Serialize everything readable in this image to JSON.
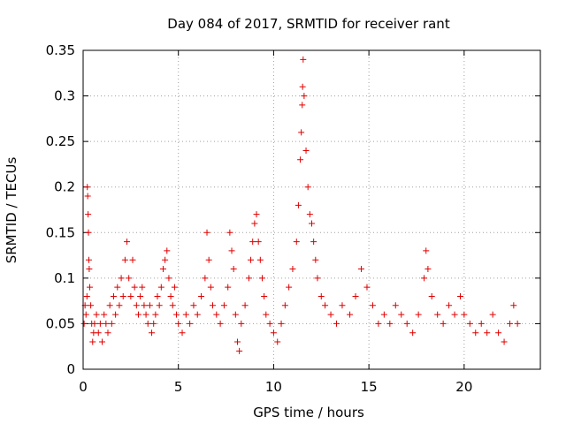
{
  "chart_data": {
    "type": "scatter",
    "title": "Day 084 of 2017, SRMTID for receiver rant",
    "xlabel": "GPS time / hours",
    "ylabel": "SRMTID / TECUs",
    "xlim": [
      0,
      24
    ],
    "ylim": [
      0,
      0.35
    ],
    "xticks": [
      0,
      5,
      10,
      15,
      20
    ],
    "yticks": [
      0,
      0.05,
      0.1,
      0.15,
      0.2,
      0.25,
      0.3,
      0.35
    ],
    "xtick_labels": [
      "0",
      "5",
      "10",
      "15",
      "20"
    ],
    "ytick_labels": [
      "0",
      "0.05",
      "0.1",
      "0.15",
      "0.2",
      "0.25",
      "0.3",
      "0.35"
    ],
    "grid": true,
    "marker": "+",
    "color": "#e00000",
    "series": [
      {
        "name": "SRMTID",
        "points": [
          [
            0.05,
            0.05
          ],
          [
            0.1,
            0.07
          ],
          [
            0.15,
            0.06
          ],
          [
            0.2,
            0.08
          ],
          [
            0.22,
            0.2
          ],
          [
            0.24,
            0.19
          ],
          [
            0.26,
            0.17
          ],
          [
            0.28,
            0.15
          ],
          [
            0.3,
            0.12
          ],
          [
            0.32,
            0.11
          ],
          [
            0.35,
            0.09
          ],
          [
            0.4,
            0.07
          ],
          [
            0.45,
            0.05
          ],
          [
            0.5,
            0.03
          ],
          [
            0.55,
            0.04
          ],
          [
            0.6,
            0.05
          ],
          [
            0.7,
            0.06
          ],
          [
            0.8,
            0.04
          ],
          [
            0.9,
            0.05
          ],
          [
            1.0,
            0.03
          ],
          [
            1.1,
            0.06
          ],
          [
            1.2,
            0.05
          ],
          [
            1.3,
            0.04
          ],
          [
            1.4,
            0.07
          ],
          [
            1.5,
            0.05
          ],
          [
            1.6,
            0.08
          ],
          [
            1.7,
            0.06
          ],
          [
            1.8,
            0.09
          ],
          [
            1.9,
            0.07
          ],
          [
            2.0,
            0.1
          ],
          [
            2.1,
            0.08
          ],
          [
            2.2,
            0.12
          ],
          [
            2.3,
            0.14
          ],
          [
            2.4,
            0.1
          ],
          [
            2.5,
            0.08
          ],
          [
            2.6,
            0.12
          ],
          [
            2.7,
            0.09
          ],
          [
            2.8,
            0.07
          ],
          [
            2.9,
            0.06
          ],
          [
            3.0,
            0.08
          ],
          [
            3.1,
            0.09
          ],
          [
            3.2,
            0.07
          ],
          [
            3.3,
            0.06
          ],
          [
            3.4,
            0.05
          ],
          [
            3.5,
            0.07
          ],
          [
            3.6,
            0.04
          ],
          [
            3.7,
            0.05
          ],
          [
            3.8,
            0.06
          ],
          [
            3.9,
            0.08
          ],
          [
            4.0,
            0.07
          ],
          [
            4.1,
            0.09
          ],
          [
            4.2,
            0.11
          ],
          [
            4.3,
            0.12
          ],
          [
            4.4,
            0.13
          ],
          [
            4.5,
            0.1
          ],
          [
            4.6,
            0.08
          ],
          [
            4.7,
            0.07
          ],
          [
            4.8,
            0.09
          ],
          [
            4.9,
            0.06
          ],
          [
            5.0,
            0.05
          ],
          [
            5.2,
            0.04
          ],
          [
            5.4,
            0.06
          ],
          [
            5.6,
            0.05
          ],
          [
            5.8,
            0.07
          ],
          [
            6.0,
            0.06
          ],
          [
            6.2,
            0.08
          ],
          [
            6.4,
            0.1
          ],
          [
            6.5,
            0.15
          ],
          [
            6.6,
            0.12
          ],
          [
            6.7,
            0.09
          ],
          [
            6.8,
            0.07
          ],
          [
            7.0,
            0.06
          ],
          [
            7.2,
            0.05
          ],
          [
            7.4,
            0.07
          ],
          [
            7.6,
            0.09
          ],
          [
            7.7,
            0.15
          ],
          [
            7.8,
            0.13
          ],
          [
            7.9,
            0.11
          ],
          [
            8.0,
            0.06
          ],
          [
            8.1,
            0.03
          ],
          [
            8.2,
            0.02
          ],
          [
            8.3,
            0.05
          ],
          [
            8.5,
            0.07
          ],
          [
            8.7,
            0.1
          ],
          [
            8.8,
            0.12
          ],
          [
            8.9,
            0.14
          ],
          [
            9.0,
            0.16
          ],
          [
            9.1,
            0.17
          ],
          [
            9.2,
            0.14
          ],
          [
            9.3,
            0.12
          ],
          [
            9.4,
            0.1
          ],
          [
            9.5,
            0.08
          ],
          [
            9.6,
            0.06
          ],
          [
            9.8,
            0.05
          ],
          [
            10.0,
            0.04
          ],
          [
            10.2,
            0.03
          ],
          [
            10.4,
            0.05
          ],
          [
            10.6,
            0.07
          ],
          [
            10.8,
            0.09
          ],
          [
            11.0,
            0.11
          ],
          [
            11.2,
            0.14
          ],
          [
            11.3,
            0.18
          ],
          [
            11.4,
            0.23
          ],
          [
            11.45,
            0.26
          ],
          [
            11.5,
            0.29
          ],
          [
            11.52,
            0.31
          ],
          [
            11.55,
            0.34
          ],
          [
            11.6,
            0.3
          ],
          [
            11.7,
            0.24
          ],
          [
            11.8,
            0.2
          ],
          [
            11.9,
            0.17
          ],
          [
            12.0,
            0.16
          ],
          [
            12.1,
            0.14
          ],
          [
            12.2,
            0.12
          ],
          [
            12.3,
            0.1
          ],
          [
            12.5,
            0.08
          ],
          [
            12.7,
            0.07
          ],
          [
            13.0,
            0.06
          ],
          [
            13.3,
            0.05
          ],
          [
            13.6,
            0.07
          ],
          [
            14.0,
            0.06
          ],
          [
            14.3,
            0.08
          ],
          [
            14.6,
            0.11
          ],
          [
            14.9,
            0.09
          ],
          [
            15.2,
            0.07
          ],
          [
            15.5,
            0.05
          ],
          [
            15.8,
            0.06
          ],
          [
            16.1,
            0.05
          ],
          [
            16.4,
            0.07
          ],
          [
            16.7,
            0.06
          ],
          [
            17.0,
            0.05
          ],
          [
            17.3,
            0.04
          ],
          [
            17.6,
            0.06
          ],
          [
            17.9,
            0.1
          ],
          [
            18.0,
            0.13
          ],
          [
            18.1,
            0.11
          ],
          [
            18.3,
            0.08
          ],
          [
            18.6,
            0.06
          ],
          [
            18.9,
            0.05
          ],
          [
            19.2,
            0.07
          ],
          [
            19.5,
            0.06
          ],
          [
            19.8,
            0.08
          ],
          [
            20.0,
            0.06
          ],
          [
            20.3,
            0.05
          ],
          [
            20.6,
            0.04
          ],
          [
            20.9,
            0.05
          ],
          [
            21.2,
            0.04
          ],
          [
            21.5,
            0.06
          ],
          [
            21.8,
            0.04
          ],
          [
            22.1,
            0.03
          ],
          [
            22.4,
            0.05
          ],
          [
            22.6,
            0.07
          ],
          [
            22.8,
            0.05
          ]
        ]
      }
    ]
  }
}
